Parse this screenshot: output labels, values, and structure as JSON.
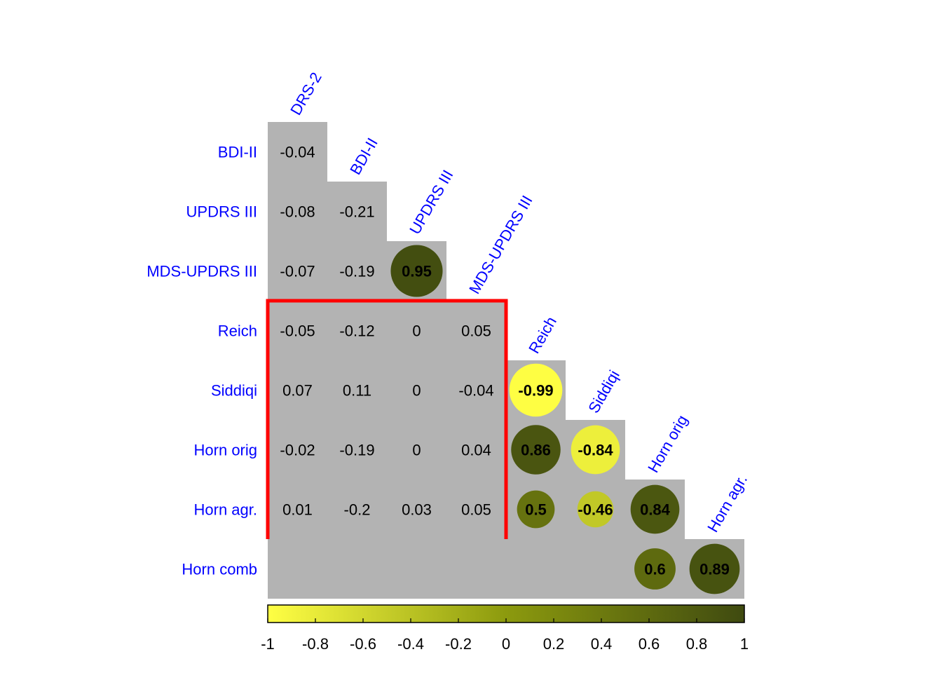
{
  "chart_data": {
    "type": "heatmap",
    "variables": [
      "DRS-2",
      "BDI-II",
      "UPDRS III",
      "MDS-UPDRS III",
      "Reich",
      "Siddiqi",
      "Horn orig",
      "Horn agr.",
      "Horn comb"
    ],
    "row_labels": [
      "BDI-II",
      "UPDRS III",
      "MDS-UPDRS III",
      "Reich",
      "Siddiqi",
      "Horn orig",
      "Horn agr.",
      "Horn comb"
    ],
    "col_labels": [
      "DRS-2",
      "BDI-II",
      "UPDRS III",
      "MDS-UPDRS III",
      "Reich",
      "Siddiqi",
      "Horn orig",
      "Horn agr."
    ],
    "cells": [
      {
        "row": 0,
        "col": 0,
        "value": -0.04,
        "label": "-0.04",
        "circle": false
      },
      {
        "row": 1,
        "col": 0,
        "value": -0.08,
        "label": "-0.08",
        "circle": false
      },
      {
        "row": 1,
        "col": 1,
        "value": -0.21,
        "label": "-0.21",
        "circle": false
      },
      {
        "row": 2,
        "col": 0,
        "value": -0.07,
        "label": "-0.07",
        "circle": false
      },
      {
        "row": 2,
        "col": 1,
        "value": -0.19,
        "label": "-0.19",
        "circle": false
      },
      {
        "row": 2,
        "col": 2,
        "value": 0.95,
        "label": "0.95",
        "circle": true
      },
      {
        "row": 3,
        "col": 0,
        "value": -0.05,
        "label": "-0.05",
        "circle": false
      },
      {
        "row": 3,
        "col": 1,
        "value": -0.12,
        "label": "-0.12",
        "circle": false
      },
      {
        "row": 3,
        "col": 2,
        "value": 0,
        "label": "0",
        "circle": false
      },
      {
        "row": 3,
        "col": 3,
        "value": 0.05,
        "label": "0.05",
        "circle": false
      },
      {
        "row": 4,
        "col": 0,
        "value": 0.07,
        "label": "0.07",
        "circle": false
      },
      {
        "row": 4,
        "col": 1,
        "value": 0.11,
        "label": "0.11",
        "circle": false
      },
      {
        "row": 4,
        "col": 2,
        "value": 0,
        "label": "0",
        "circle": false
      },
      {
        "row": 4,
        "col": 3,
        "value": -0.04,
        "label": "-0.04",
        "circle": false
      },
      {
        "row": 4,
        "col": 4,
        "value": -0.99,
        "label": "-0.99",
        "circle": true
      },
      {
        "row": 5,
        "col": 0,
        "value": -0.02,
        "label": "-0.02",
        "circle": false
      },
      {
        "row": 5,
        "col": 1,
        "value": -0.19,
        "label": "-0.19",
        "circle": false
      },
      {
        "row": 5,
        "col": 2,
        "value": 0,
        "label": "0",
        "circle": false
      },
      {
        "row": 5,
        "col": 3,
        "value": 0.04,
        "label": "0.04",
        "circle": false
      },
      {
        "row": 5,
        "col": 4,
        "value": 0.86,
        "label": "0.86",
        "circle": true
      },
      {
        "row": 5,
        "col": 5,
        "value": -0.84,
        "label": "-0.84",
        "circle": true
      },
      {
        "row": 6,
        "col": 0,
        "value": 0.01,
        "label": "0.01",
        "circle": false
      },
      {
        "row": 6,
        "col": 1,
        "value": -0.2,
        "label": "-0.2",
        "circle": false
      },
      {
        "row": 6,
        "col": 2,
        "value": 0.03,
        "label": "0.03",
        "circle": false
      },
      {
        "row": 6,
        "col": 3,
        "value": 0.05,
        "label": "0.05",
        "circle": false
      },
      {
        "row": 6,
        "col": 4,
        "value": 0.5,
        "label": "0.5",
        "circle": true
      },
      {
        "row": 6,
        "col": 5,
        "value": -0.46,
        "label": "-0.46",
        "circle": true
      },
      {
        "row": 6,
        "col": 6,
        "value": 0.84,
        "label": "0.84",
        "circle": true
      },
      {
        "row": 7,
        "col": 6,
        "value": 0.6,
        "label": "0.6",
        "circle": true
      },
      {
        "row": 7,
        "col": 7,
        "value": 0.89,
        "label": "0.89",
        "circle": true
      }
    ],
    "highlight_box": {
      "rows": [
        3,
        6
      ],
      "cols": [
        0,
        3
      ],
      "color": "#ff0000"
    },
    "colorbar": {
      "range": [
        -1,
        1
      ],
      "ticks": [
        "-1",
        "-0.8",
        "-0.6",
        "-0.4",
        "-0.2",
        "0",
        "0.2",
        "0.4",
        "0.6",
        "0.8",
        "1"
      ],
      "low_color": "#ffff44",
      "mid_color": "#8c9a0e",
      "high_color": "#3f4a10"
    },
    "cell_background": "#b3b3b3",
    "label_color": "#0000ff"
  }
}
